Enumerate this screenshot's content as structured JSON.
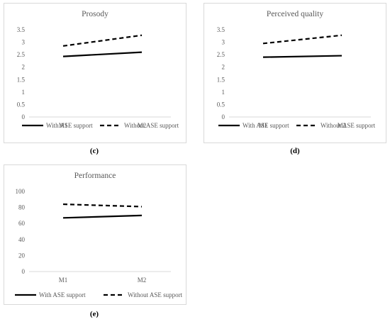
{
  "chart_data": [
    {
      "type": "line",
      "title": "Prosody",
      "caption": "(c)",
      "categories": [
        "M1",
        "M2"
      ],
      "ylim": [
        0,
        3.5
      ],
      "yticks": [
        "0",
        "0.5",
        "1",
        "1.5",
        "2",
        "2.5",
        "3",
        "3.5"
      ],
      "series": [
        {
          "name": "With ASE support",
          "values": [
            2.43,
            2.6
          ],
          "style": "solid"
        },
        {
          "name": "Without ASE support",
          "values": [
            2.85,
            3.28
          ],
          "style": "dashed"
        }
      ],
      "legend": "bottom"
    },
    {
      "type": "line",
      "title": "Perceived quality",
      "caption": "(d)",
      "categories": [
        "M1",
        "M2"
      ],
      "ylim": [
        0,
        3.5
      ],
      "yticks": [
        "0",
        "0.5",
        "1",
        "1.5",
        "2",
        "2.5",
        "3",
        "3.5"
      ],
      "series": [
        {
          "name": "With ASE support",
          "values": [
            2.4,
            2.46
          ],
          "style": "solid"
        },
        {
          "name": "Without ASE support",
          "values": [
            2.95,
            3.28
          ],
          "style": "dashed"
        }
      ],
      "legend": "bottom"
    },
    {
      "type": "line",
      "title": "Performance",
      "caption": "(e)",
      "categories": [
        "M1",
        "M2"
      ],
      "ylim": [
        0,
        100
      ],
      "yticks": [
        "0",
        "20",
        "40",
        "60",
        "80",
        "100"
      ],
      "series": [
        {
          "name": "With ASE support",
          "values": [
            67,
            70
          ],
          "style": "solid"
        },
        {
          "name": "Without ASE support",
          "values": [
            84,
            81
          ],
          "style": "dashed"
        }
      ],
      "legend": "bottom"
    }
  ]
}
